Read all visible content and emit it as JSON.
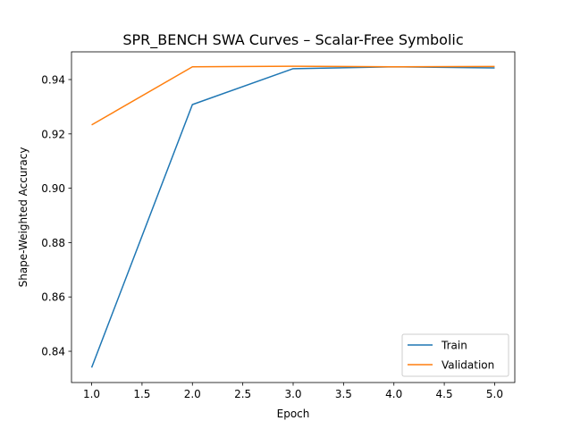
{
  "chart_data": {
    "type": "line",
    "title": "SPR_BENCH SWA Curves – Scalar-Free Symbolic",
    "xlabel": "Epoch",
    "ylabel": "Shape-Weighted Accuracy",
    "x": [
      1,
      2,
      3,
      4,
      5
    ],
    "xlim": [
      0.8,
      5.2
    ],
    "ylim": [
      0.8285,
      0.9502
    ],
    "xticks": [
      1.0,
      1.5,
      2.0,
      2.5,
      3.0,
      3.5,
      4.0,
      4.5,
      5.0
    ],
    "yticks": [
      0.84,
      0.86,
      0.88,
      0.9,
      0.92,
      0.94
    ],
    "xtick_labels": [
      "1.0",
      "1.5",
      "2.0",
      "2.5",
      "3.0",
      "3.5",
      "4.0",
      "4.5",
      "5.0"
    ],
    "ytick_labels": [
      "0.84",
      "0.86",
      "0.88",
      "0.90",
      "0.92",
      "0.94"
    ],
    "grid": false,
    "legend_position": "lower-right",
    "series": [
      {
        "name": "Train",
        "color": "#1f77b4",
        "values": [
          0.834,
          0.9308,
          0.944,
          0.9447,
          0.9443
        ]
      },
      {
        "name": "Validation",
        "color": "#ff7f0e",
        "values": [
          0.9233,
          0.9447,
          0.9449,
          0.9447,
          0.9448
        ]
      }
    ]
  }
}
